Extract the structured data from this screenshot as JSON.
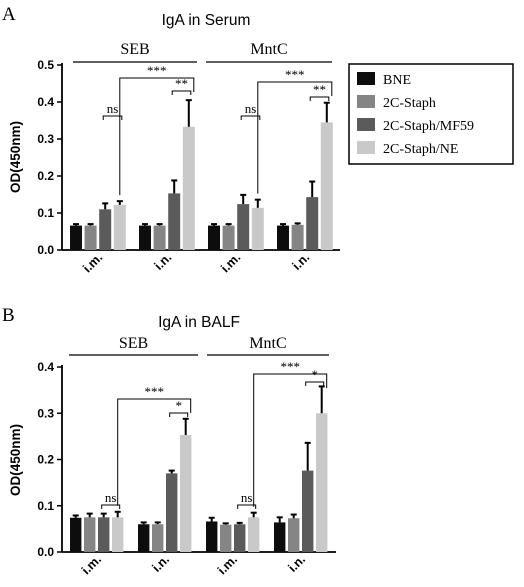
{
  "colors": {
    "BNE": "#0d0d0d",
    "2C-Staph": "#858585",
    "2C-Staph/MF59": "#5b5b5b",
    "2C-Staph/NE": "#c9c9c9"
  },
  "legend": [
    "BNE",
    "2C-Staph",
    "2C-Staph/MF59",
    "2C-Staph/NE"
  ],
  "chart_data": [
    {
      "type": "bar",
      "panel": "A",
      "title": "IgA in Serum",
      "ylabel": "OD(450nm)",
      "ylim": [
        0,
        0.5
      ],
      "yticks": [
        "0.0",
        "0.1",
        "0.2",
        "0.3",
        "0.4",
        "0.5"
      ],
      "groups": [
        "SEB",
        "MntC"
      ],
      "categories": [
        "i.m.",
        "i.n.",
        "i.m.",
        "i.n."
      ],
      "series": [
        {
          "name": "BNE",
          "values": [
            0.066,
            0.066,
            0.066,
            0.066
          ],
          "errors": [
            0.004,
            0.004,
            0.004,
            0.004
          ]
        },
        {
          "name": "2C-Staph",
          "values": [
            0.066,
            0.066,
            0.066,
            0.068
          ],
          "errors": [
            0.004,
            0.004,
            0.004,
            0.004
          ]
        },
        {
          "name": "2C-Staph/MF59",
          "values": [
            0.11,
            0.153,
            0.124,
            0.143
          ],
          "errors": [
            0.016,
            0.035,
            0.025,
            0.042
          ]
        },
        {
          "name": "2C-Staph/NE",
          "values": [
            0.122,
            0.333,
            0.114,
            0.345
          ],
          "errors": [
            0.01,
            0.072,
            0.022,
            0.053
          ]
        }
      ],
      "significance": [
        {
          "label": "ns"
        },
        {
          "label": "**"
        },
        {
          "label": "***"
        },
        {
          "label": "ns"
        },
        {
          "label": "**"
        },
        {
          "label": "***"
        }
      ]
    },
    {
      "type": "bar",
      "panel": "B",
      "title": "IgA in BALF",
      "ylabel": "OD(450nm)",
      "ylim": [
        0,
        0.4
      ],
      "yticks": [
        "0.0",
        "0.1",
        "0.2",
        "0.3",
        "0.4"
      ],
      "groups": [
        "SEB",
        "MntC"
      ],
      "categories": [
        "i.m.",
        "i.n.",
        "i.m.",
        "i.n."
      ],
      "series": [
        {
          "name": "BNE",
          "values": [
            0.074,
            0.06,
            0.066,
            0.064
          ],
          "errors": [
            0.005,
            0.004,
            0.008,
            0.011
          ]
        },
        {
          "name": "2C-Staph",
          "values": [
            0.075,
            0.06,
            0.059,
            0.073
          ],
          "errors": [
            0.008,
            0.004,
            0.003,
            0.008
          ]
        },
        {
          "name": "2C-Staph/MF59",
          "values": [
            0.075,
            0.17,
            0.06,
            0.176
          ],
          "errors": [
            0.008,
            0.006,
            0.003,
            0.06
          ]
        },
        {
          "name": "2C-Staph/NE",
          "values": [
            0.075,
            0.253,
            0.075,
            0.3
          ],
          "errors": [
            0.012,
            0.035,
            0.01,
            0.058
          ]
        }
      ],
      "significance": [
        {
          "label": "ns"
        },
        {
          "label": "*"
        },
        {
          "label": "***"
        },
        {
          "label": "ns"
        },
        {
          "label": "*"
        },
        {
          "label": "***"
        }
      ]
    }
  ]
}
